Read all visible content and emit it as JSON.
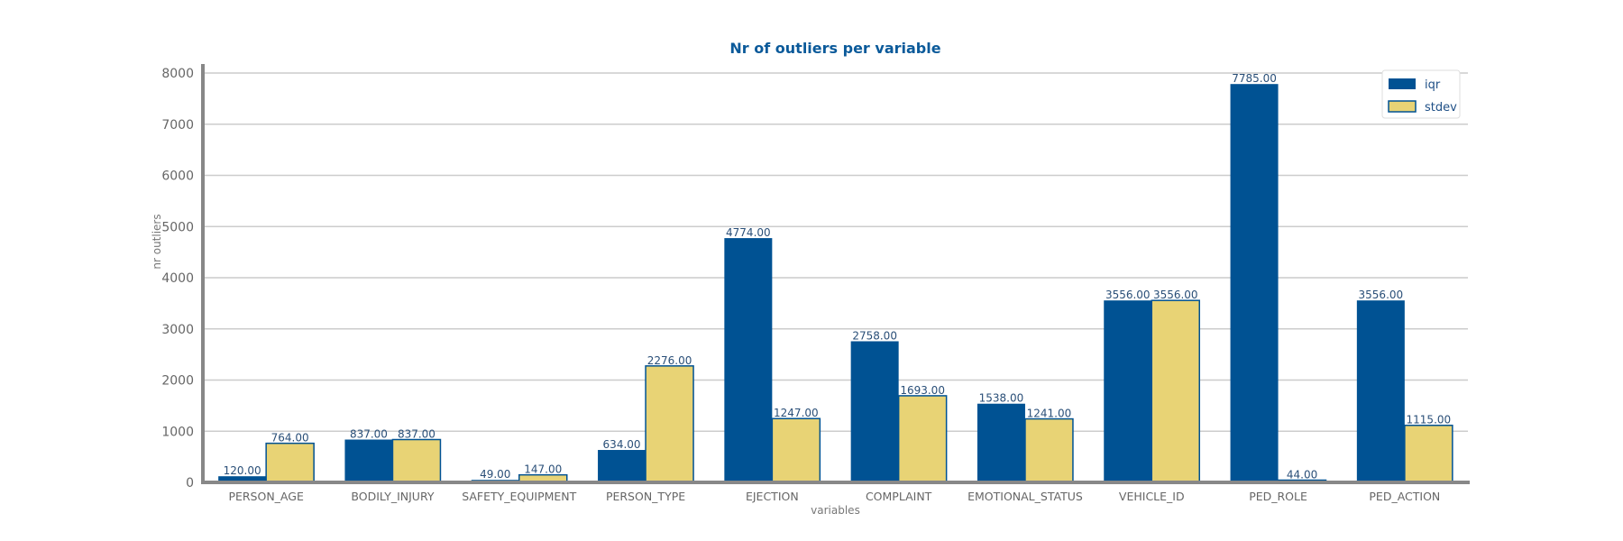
{
  "chart_data": {
    "type": "bar",
    "title": "Nr of outliers per variable",
    "xlabel": "variables",
    "ylabel": "nr outliers",
    "ylim": [
      0,
      8000
    ],
    "yticks": [
      0,
      1000,
      2000,
      3000,
      4000,
      5000,
      6000,
      7000,
      8000
    ],
    "grid": true,
    "legend_position": "top-right",
    "categories": [
      "PERSON_AGE",
      "BODILY_INJURY",
      "SAFETY_EQUIPMENT",
      "PERSON_TYPE",
      "EJECTION",
      "COMPLAINT",
      "EMOTIONAL_STATUS",
      "VEHICLE_ID",
      "PED_ROLE",
      "PED_ACTION"
    ],
    "series": [
      {
        "name": "iqr",
        "color": "#005293",
        "values": [
          120,
          837,
          49,
          634,
          4774,
          2758,
          1538,
          3556,
          7785,
          3556
        ],
        "labels": [
          "120.00",
          "837.00",
          "49.00",
          "634.00",
          "4774.00",
          "2758.00",
          "1538.00",
          "3556.00",
          "7785.00",
          "3556.00"
        ]
      },
      {
        "name": "stdev",
        "color": "#e8d375",
        "edge_color": "#005293",
        "values": [
          764,
          837,
          147,
          2276,
          1247,
          1693,
          1241,
          3556,
          44,
          1115
        ],
        "labels": [
          "764.00",
          "837.00",
          "147.00",
          "2276.00",
          "1247.00",
          "1693.00",
          "1241.00",
          "3556.00",
          "44.00",
          "1115.00"
        ]
      }
    ]
  }
}
